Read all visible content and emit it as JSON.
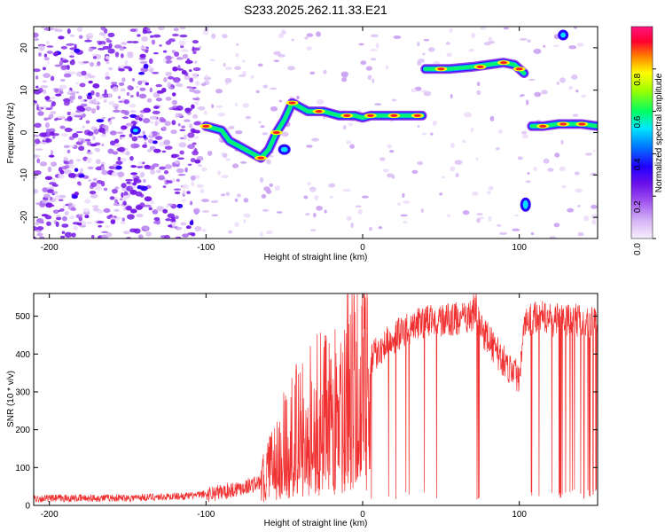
{
  "title": "S233.2025.262.11.33.E21",
  "chart_data": [
    {
      "type": "heatmap",
      "xlabel": "Height of straight line (km)",
      "ylabel": "Frequency (Hz)",
      "xlim": [
        -210,
        150
      ],
      "ylim": [
        -25,
        25
      ],
      "xticks": [
        -200,
        -100,
        0,
        100
      ],
      "yticks": [
        -20,
        -10,
        0,
        10,
        20
      ],
      "colorbar": {
        "label": "Normalized spectral amplitude",
        "range": [
          0,
          1
        ],
        "ticks": [
          "0.0",
          "0.2",
          "0.4",
          "0.6",
          "0.8"
        ],
        "colors": [
          "#f2e6fb",
          "#d6b8f4",
          "#a35cf0",
          "#7a1ee8",
          "#2a00ff",
          "#0060ff",
          "#00e0ff",
          "#00ff40",
          "#ffff00",
          "#ff8000",
          "#ff0040",
          "#ff1493"
        ]
      },
      "ridge": [
        {
          "x": -100,
          "f": 1.5
        },
        {
          "x": -90,
          "f": 0.5
        },
        {
          "x": -85,
          "f": -2
        },
        {
          "x": -80,
          "f": -3
        },
        {
          "x": -75,
          "f": -4
        },
        {
          "x": -70,
          "f": -5
        },
        {
          "x": -65,
          "f": -6
        },
        {
          "x": -60,
          "f": -4
        },
        {
          "x": -55,
          "f": 0
        },
        {
          "x": -50,
          "f": 3
        },
        {
          "x": -45,
          "f": 7
        },
        {
          "x": -40,
          "f": 6
        },
        {
          "x": -35,
          "f": 5
        },
        {
          "x": -30,
          "f": 5
        },
        {
          "x": -25,
          "f": 5
        },
        {
          "x": -20,
          "f": 4.5
        },
        {
          "x": -15,
          "f": 4
        },
        {
          "x": -10,
          "f": 4
        },
        {
          "x": -5,
          "f": 4
        },
        {
          "x": 0,
          "f": 3.5
        },
        {
          "x": 5,
          "f": 4
        },
        {
          "x": 15,
          "f": 4
        },
        {
          "x": 25,
          "f": 4
        },
        {
          "x": 38,
          "f": 4
        },
        {
          "x": 40,
          "f": 15
        },
        {
          "x": 55,
          "f": 15
        },
        {
          "x": 70,
          "f": 15.5
        },
        {
          "x": 80,
          "f": 16
        },
        {
          "x": 90,
          "f": 16.5
        },
        {
          "x": 97,
          "f": 16
        },
        {
          "x": 103,
          "f": 14
        },
        {
          "x": 108,
          "f": 1.5
        },
        {
          "x": 115,
          "f": 1.5
        },
        {
          "x": 125,
          "f": 2
        },
        {
          "x": 140,
          "f": 2
        },
        {
          "x": 150,
          "f": 1.5
        }
      ]
    },
    {
      "type": "line",
      "xlabel": "Height of straight line (km)",
      "ylabel": "SNR (10 * v/v)",
      "xlim": [
        -210,
        150
      ],
      "ylim": [
        0,
        560
      ],
      "xticks": [
        -200,
        -100,
        0,
        100
      ],
      "yticks": [
        0,
        100,
        200,
        300,
        400,
        500
      ],
      "color": "#f03030",
      "envelope": [
        {
          "x": -210,
          "y": 18
        },
        {
          "x": -150,
          "y": 20
        },
        {
          "x": -110,
          "y": 25
        },
        {
          "x": -90,
          "y": 35
        },
        {
          "x": -75,
          "y": 50
        },
        {
          "x": -65,
          "y": 60
        },
        {
          "x": -55,
          "y": 130
        },
        {
          "x": -45,
          "y": 190
        },
        {
          "x": -35,
          "y": 220
        },
        {
          "x": -25,
          "y": 250
        },
        {
          "x": -15,
          "y": 290
        },
        {
          "x": -5,
          "y": 330
        },
        {
          "x": 5,
          "y": 390
        },
        {
          "x": 15,
          "y": 430
        },
        {
          "x": 25,
          "y": 460
        },
        {
          "x": 35,
          "y": 480
        },
        {
          "x": 45,
          "y": 490
        },
        {
          "x": 55,
          "y": 490
        },
        {
          "x": 65,
          "y": 495
        },
        {
          "x": 72,
          "y": 500
        },
        {
          "x": 80,
          "y": 440
        },
        {
          "x": 88,
          "y": 390
        },
        {
          "x": 95,
          "y": 360
        },
        {
          "x": 100,
          "y": 340
        },
        {
          "x": 103,
          "y": 480
        },
        {
          "x": 110,
          "y": 500
        },
        {
          "x": 120,
          "y": 490
        },
        {
          "x": 130,
          "y": 490
        },
        {
          "x": 140,
          "y": 490
        },
        {
          "x": 150,
          "y": 480
        }
      ]
    }
  ]
}
